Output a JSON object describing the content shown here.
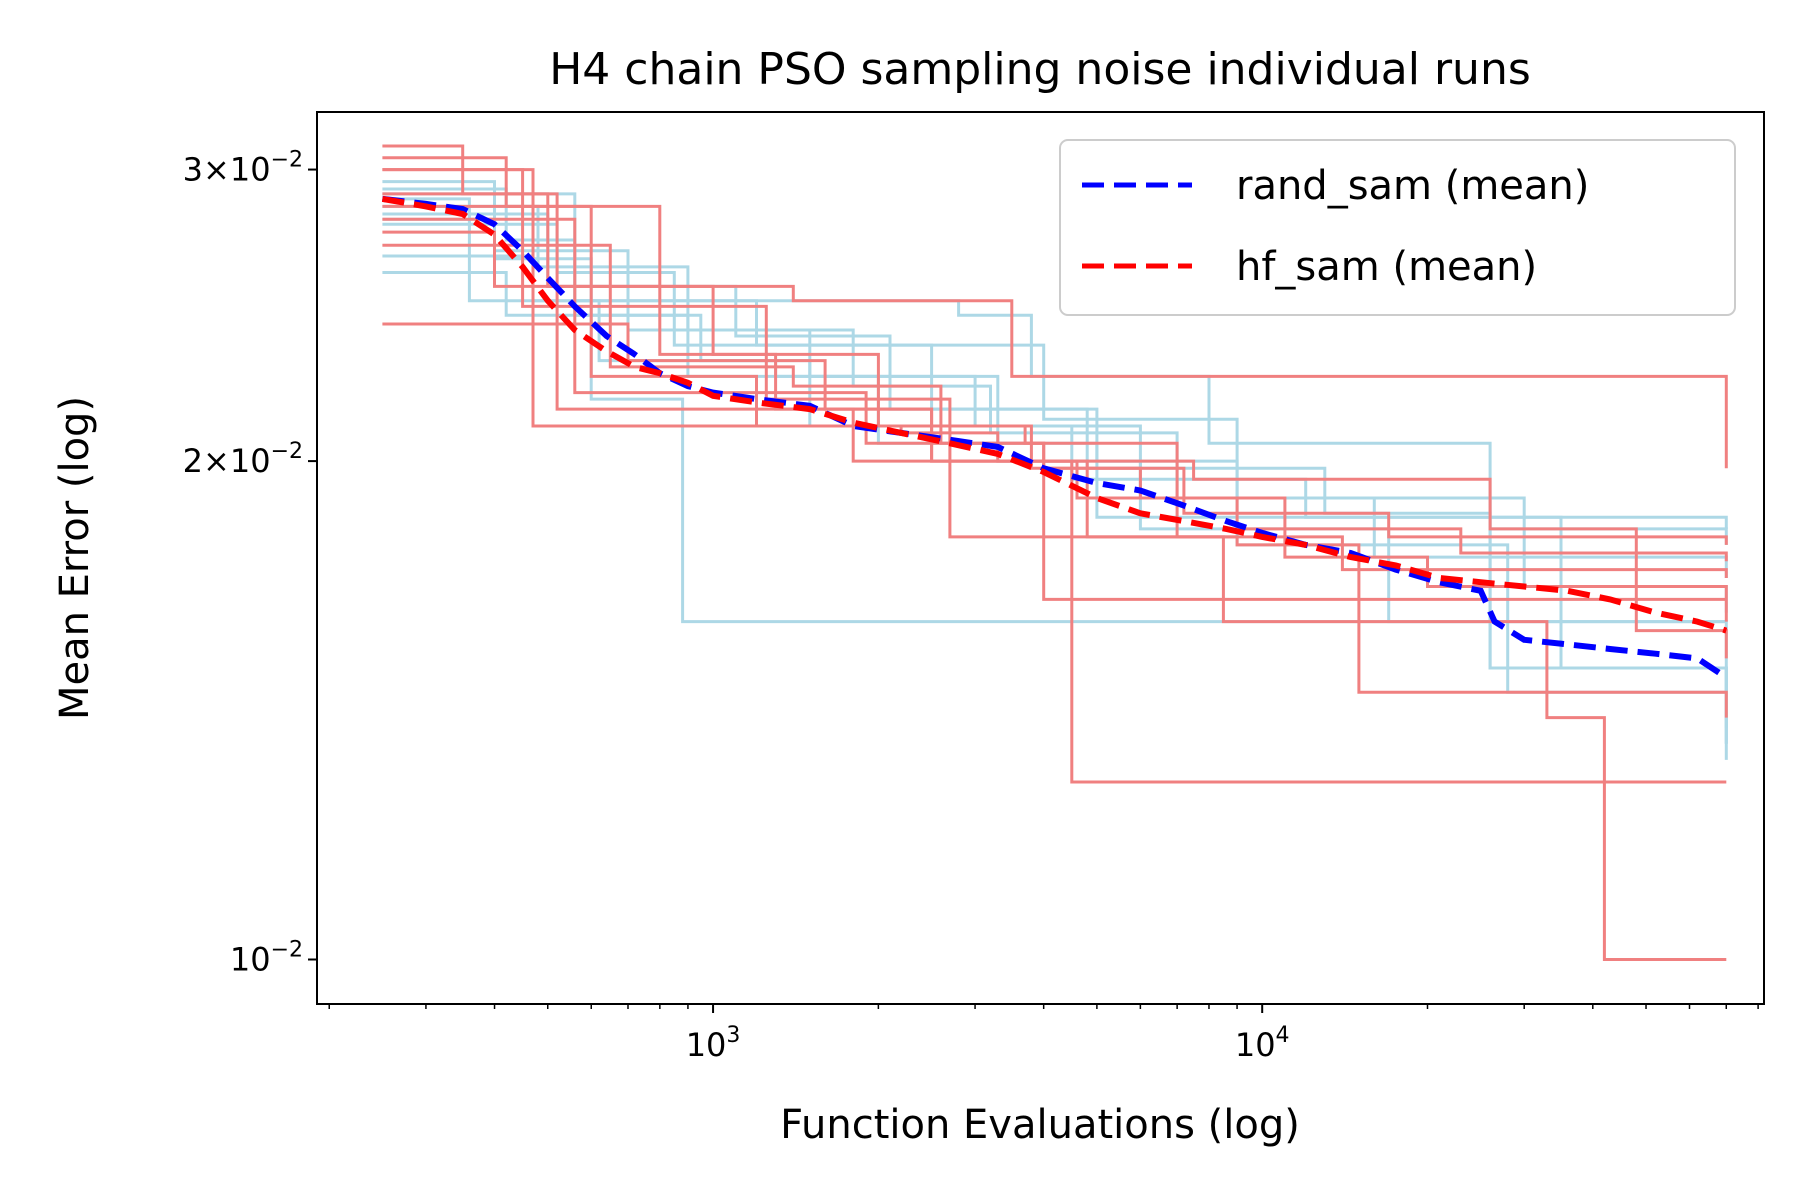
{
  "chart_data": {
    "type": "line",
    "title": "H4 chain PSO sampling noise individual runs",
    "xlabel": "Function Evaluations (log)",
    "ylabel": "Mean Error (log)",
    "xscale": "log",
    "yscale": "log",
    "xlim": [
      190,
      82000
    ],
    "ylim": [
      0.0094,
      0.0325
    ],
    "x_major_ticks": [
      {
        "value": 1000,
        "base": "10",
        "exp": "3"
      },
      {
        "value": 10000,
        "base": "10",
        "exp": "4"
      }
    ],
    "y_major_ticks": [
      {
        "value": 0.03,
        "base": "3×10",
        "exp": "−2"
      },
      {
        "value": 0.02,
        "base": "2×10",
        "exp": "−2"
      },
      {
        "value": 0.01,
        "base": "10",
        "exp": "−2"
      }
    ],
    "legend": {
      "position": "top-right",
      "entries": [
        {
          "label": "rand_sam (mean)",
          "color": "#0000ff"
        },
        {
          "label": "hf_sam (mean)",
          "color": "#ff0000"
        }
      ]
    },
    "colors": {
      "rand_run": "#add8e6",
      "hf_run": "#f08080",
      "rand_mean": "#0000ff",
      "hf_mean": "#ff0000"
    },
    "rand_runs": [
      {
        "x": [
          250,
          420,
          560,
          900,
          2000,
          5000,
          70000
        ],
        "y": [
          0.0292,
          0.0272,
          0.0245,
          0.0225,
          0.0205,
          0.0185,
          0.0182
        ]
      },
      {
        "x": [
          250,
          480,
          900,
          1500,
          3000,
          6000,
          26000,
          70000
        ],
        "y": [
          0.0285,
          0.0262,
          0.024,
          0.0225,
          0.021,
          0.019,
          0.015,
          0.014
        ]
      },
      {
        "x": [
          250,
          520,
          850,
          2500,
          5000,
          9000,
          28000,
          70000
        ],
        "y": [
          0.0278,
          0.026,
          0.0235,
          0.0215,
          0.02,
          0.0178,
          0.0145,
          0.0138
        ]
      },
      {
        "x": [
          250,
          400,
          600,
          880,
          70000
        ],
        "y": [
          0.0295,
          0.0265,
          0.0218,
          0.016,
          0.016
        ]
      },
      {
        "x": [
          250,
          560,
          2800,
          3800,
          8000,
          26000,
          70000
        ],
        "y": [
          0.029,
          0.025,
          0.0245,
          0.0225,
          0.0205,
          0.0182,
          0.0178
        ]
      },
      {
        "x": [
          250,
          470,
          1200,
          4000,
          9000,
          30000,
          70000
        ],
        "y": [
          0.0266,
          0.025,
          0.0235,
          0.0212,
          0.019,
          0.0168,
          0.0162
        ]
      },
      {
        "x": [
          250,
          420,
          950,
          1500,
          4500,
          12000,
          35000,
          70000
        ],
        "y": [
          0.026,
          0.0245,
          0.023,
          0.021,
          0.0195,
          0.0185,
          0.015,
          0.0135
        ]
      },
      {
        "x": [
          250,
          400,
          700,
          1800,
          3200,
          7000,
          16000,
          70000
        ],
        "y": [
          0.028,
          0.0268,
          0.024,
          0.0222,
          0.0208,
          0.019,
          0.0175,
          0.017
        ]
      },
      {
        "x": [
          250,
          500,
          1100,
          2100,
          4800,
          13000,
          26000,
          70000
        ],
        "y": [
          0.0282,
          0.0255,
          0.0238,
          0.0215,
          0.0198,
          0.0186,
          0.015,
          0.0135
        ]
      },
      {
        "x": [
          250,
          360,
          620,
          1300,
          3300,
          6000,
          17000,
          70000
        ],
        "y": [
          0.0288,
          0.025,
          0.023,
          0.0225,
          0.02,
          0.0182,
          0.016,
          0.0132
        ]
      }
    ],
    "hf_runs": [
      {
        "x": [
          250,
          350,
          500,
          1400,
          3500,
          70000
        ],
        "y": [
          0.031,
          0.029,
          0.0255,
          0.025,
          0.0225,
          0.0198
        ]
      },
      {
        "x": [
          250,
          420,
          800,
          1300,
          2500,
          7000,
          14000,
          70000
        ],
        "y": [
          0.0305,
          0.0285,
          0.0232,
          0.0215,
          0.0205,
          0.018,
          0.0172,
          0.017
        ]
      },
      {
        "x": [
          250,
          560,
          1900,
          2500,
          4600,
          11000,
          20000,
          70000
        ],
        "y": [
          0.028,
          0.022,
          0.0205,
          0.02,
          0.019,
          0.0175,
          0.0168,
          0.016
        ]
      },
      {
        "x": [
          250,
          470,
          3700,
          4000,
          70000
        ],
        "y": [
          0.03,
          0.021,
          0.0205,
          0.0165,
          0.0165
        ]
      },
      {
        "x": [
          250,
          520,
          1800,
          4800,
          9000,
          15000,
          70000
        ],
        "y": [
          0.029,
          0.0215,
          0.02,
          0.018,
          0.0178,
          0.0145,
          0.014
        ]
      },
      {
        "x": [
          250,
          400,
          1000,
          2000,
          3800,
          6000,
          9000,
          23000,
          70000
        ],
        "y": [
          0.0275,
          0.0255,
          0.0232,
          0.021,
          0.0198,
          0.019,
          0.0182,
          0.0176,
          0.0174
        ]
      },
      {
        "x": [
          250,
          700,
          1600,
          2500,
          4500,
          70000
        ],
        "y": [
          0.0242,
          0.023,
          0.0215,
          0.02,
          0.0128,
          0.0128
        ]
      },
      {
        "x": [
          250,
          600,
          1200,
          2200,
          3300,
          7500,
          26000,
          48000,
          70000
        ],
        "y": [
          0.0285,
          0.0225,
          0.021,
          0.0208,
          0.02,
          0.0195,
          0.0182,
          0.0158,
          0.0152
        ]
      },
      {
        "x": [
          250,
          450,
          1250,
          1900,
          2700,
          8500,
          33000,
          42000,
          70000
        ],
        "y": [
          0.03,
          0.0248,
          0.0218,
          0.0218,
          0.018,
          0.016,
          0.014,
          0.01,
          0.01
        ]
      },
      {
        "x": [
          250,
          650,
          1400,
          2600,
          4000,
          7200,
          17000,
          70000
        ],
        "y": [
          0.027,
          0.0228,
          0.0222,
          0.0205,
          0.0198,
          0.0186,
          0.018,
          0.0178
        ]
      }
    ],
    "rand_mean": {
      "x": [
        250,
        300,
        350,
        400,
        450,
        500,
        560,
        640,
        720,
        800,
        900,
        1000,
        1200,
        1500,
        1800,
        2200,
        2700,
        3300,
        4000,
        5000,
        6000,
        7200,
        8600,
        10000,
        12000,
        14500,
        17500,
        21000,
        25000,
        26500,
        30000,
        36000,
        43000,
        52000,
        62000,
        70000
      ],
      "y": [
        0.0288,
        0.0286,
        0.0284,
        0.0278,
        0.0268,
        0.0258,
        0.0248,
        0.0238,
        0.0232,
        0.0226,
        0.0222,
        0.022,
        0.0218,
        0.0216,
        0.021,
        0.0208,
        0.0206,
        0.0204,
        0.0198,
        0.0194,
        0.0192,
        0.0188,
        0.0184,
        0.0181,
        0.0178,
        0.0176,
        0.0172,
        0.0169,
        0.0167,
        0.016,
        0.0156,
        0.0155,
        0.0154,
        0.0153,
        0.0152,
        0.0148
      ]
    },
    "hf_mean": {
      "x": [
        250,
        300,
        350,
        400,
        450,
        500,
        560,
        640,
        720,
        800,
        900,
        1000,
        1200,
        1500,
        1800,
        2200,
        2700,
        3300,
        4000,
        5000,
        6000,
        7200,
        8600,
        10000,
        12000,
        14500,
        17500,
        21000,
        25000,
        30000,
        36000,
        43000,
        52000,
        62000,
        70000
      ],
      "y": [
        0.0288,
        0.0285,
        0.0282,
        0.0274,
        0.0262,
        0.025,
        0.024,
        0.0233,
        0.0228,
        0.0226,
        0.0223,
        0.0219,
        0.0217,
        0.0215,
        0.0211,
        0.0208,
        0.0205,
        0.0202,
        0.0197,
        0.019,
        0.0186,
        0.0184,
        0.0182,
        0.018,
        0.0178,
        0.0175,
        0.0173,
        0.017,
        0.0169,
        0.0168,
        0.0167,
        0.0165,
        0.0162,
        0.016,
        0.0158
      ]
    }
  }
}
